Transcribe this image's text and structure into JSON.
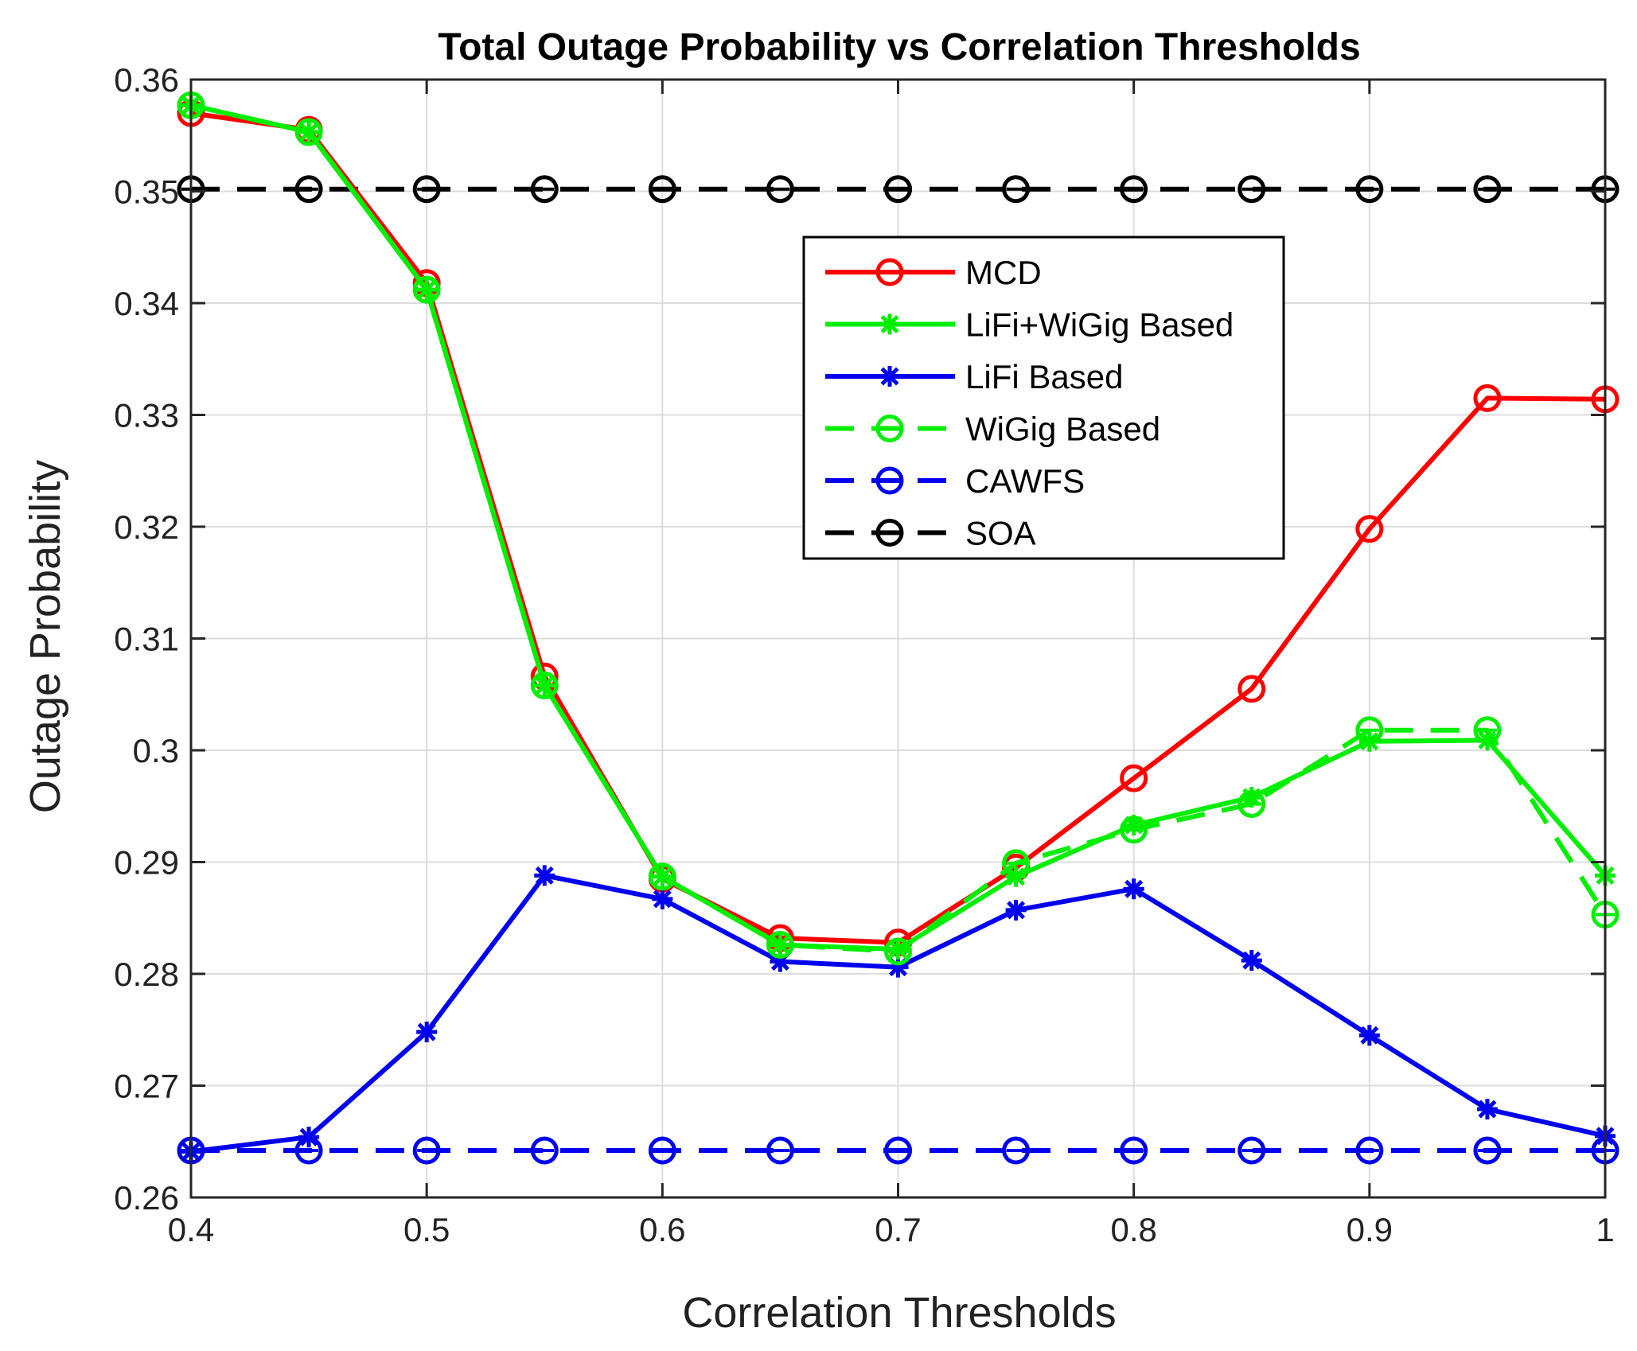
{
  "chart_data": {
    "type": "line",
    "title": "Total Outage Probability vs Correlation Thresholds",
    "xlabel": "Correlation Thresholds",
    "ylabel": "Outage Probability",
    "xlim": [
      0.4,
      1.0
    ],
    "ylim": [
      0.26,
      0.36
    ],
    "xticks": [
      0.4,
      0.5,
      0.6,
      0.7,
      0.8,
      0.9,
      1.0
    ],
    "xtick_labels": [
      "0.4",
      "0.5",
      "0.6",
      "0.7",
      "0.8",
      "0.9",
      "1"
    ],
    "yticks": [
      0.26,
      0.27,
      0.28,
      0.29,
      0.3,
      0.31,
      0.32,
      0.33,
      0.34,
      0.35,
      0.36
    ],
    "ytick_labels": [
      "0.26",
      "0.27",
      "0.28",
      "0.29",
      "0.3",
      "0.31",
      "0.32",
      "0.33",
      "0.34",
      "0.35",
      "0.36"
    ],
    "grid": true,
    "legend_position": "upper-center-right",
    "x": [
      0.4,
      0.45,
      0.5,
      0.55,
      0.6,
      0.65,
      0.7,
      0.75,
      0.8,
      0.85,
      0.9,
      0.95,
      1.0
    ],
    "series": [
      {
        "name": "MCD",
        "color": "#ff0000",
        "dash": "solid",
        "marker": "circle",
        "values": [
          0.357,
          0.3555,
          0.3418,
          0.3066,
          0.2885,
          0.2832,
          0.2828,
          0.2895,
          0.2975,
          0.3055,
          0.3198,
          0.3315,
          0.3314
        ]
      },
      {
        "name": "LiFi+WiGig Based",
        "color": "#00ee00",
        "dash": "solid",
        "marker": "star",
        "values": [
          0.3577,
          0.3553,
          0.3412,
          0.3058,
          0.2887,
          0.2826,
          0.2822,
          0.2887,
          0.2933,
          0.2958,
          0.3008,
          0.3009,
          0.2888
        ]
      },
      {
        "name": "LiFi Based",
        "color": "#0000ee",
        "dash": "solid",
        "marker": "star",
        "values": [
          0.2641,
          0.2654,
          0.2748,
          0.2888,
          0.2867,
          0.2811,
          0.2806,
          0.2857,
          0.2876,
          0.2812,
          0.2745,
          0.2679,
          0.2655
        ]
      },
      {
        "name": "WiGig Based",
        "color": "#00ee00",
        "dash": "dashed",
        "marker": "circle-line",
        "values": [
          0.3577,
          0.3553,
          0.3412,
          0.3058,
          0.2887,
          0.2826,
          0.282,
          0.2899,
          0.2929,
          0.2952,
          0.3018,
          0.3018,
          0.2853
        ]
      },
      {
        "name": "CAWFS",
        "color": "#0000ee",
        "dash": "dashed",
        "marker": "circle-line",
        "values": [
          0.2642,
          0.2642,
          0.2642,
          0.2642,
          0.2642,
          0.2642,
          0.2642,
          0.2642,
          0.2642,
          0.2642,
          0.2642,
          0.2642,
          0.2642
        ]
      },
      {
        "name": "SOA",
        "color": "#000000",
        "dash": "dashed",
        "marker": "circle-line",
        "values": [
          0.3502,
          0.3502,
          0.3502,
          0.3502,
          0.3502,
          0.3502,
          0.3502,
          0.3502,
          0.3502,
          0.3502,
          0.3502,
          0.3502,
          0.3502
        ]
      }
    ]
  }
}
